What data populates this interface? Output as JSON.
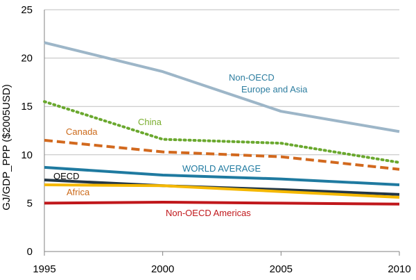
{
  "chart_data": {
    "type": "line",
    "title": "",
    "xlabel": "",
    "ylabel": "GJ/GDP_PPP ($2005USD)",
    "x": [
      1995,
      2000,
      2005,
      2010
    ],
    "xlim": [
      1995,
      2010
    ],
    "ylim": [
      0,
      25
    ],
    "xticks": [
      "1995",
      "2000",
      "2005",
      "2010"
    ],
    "yticks": [
      "0",
      "5",
      "10",
      "15",
      "20",
      "25"
    ],
    "grid": true,
    "series": [
      {
        "name": "Non-OECD Europe and Asia",
        "label_lines": [
          "Non-OECD",
          "Europe and Asia"
        ],
        "values": [
          21.6,
          18.6,
          14.5,
          12.4
        ],
        "color": "#9db6c8",
        "label_color": "#2e7ea0",
        "style": "solid"
      },
      {
        "name": "China",
        "label_lines": [
          "China"
        ],
        "values": [
          15.5,
          11.6,
          11.2,
          9.2
        ],
        "color": "#6aa82e",
        "label_color": "#7aae2e",
        "style": "dotted"
      },
      {
        "name": "Canada",
        "label_lines": [
          "Canada"
        ],
        "values": [
          11.5,
          10.3,
          9.8,
          8.5
        ],
        "color": "#d2691e",
        "label_color": "#cc6a1a",
        "style": "dashed"
      },
      {
        "name": "WORLD AVERAGE",
        "label_lines": [
          "WORLD AVERAGE"
        ],
        "values": [
          8.7,
          7.9,
          7.5,
          6.9
        ],
        "color": "#1f7aa0",
        "label_color": "#1f7aa0",
        "style": "solid"
      },
      {
        "name": "OECD",
        "label_lines": [
          "OECD"
        ],
        "values": [
          7.4,
          6.8,
          6.4,
          5.9
        ],
        "color": "#233746",
        "label_color": "#000000",
        "style": "solid"
      },
      {
        "name": "Africa",
        "label_lines": [
          "Africa"
        ],
        "values": [
          6.9,
          6.8,
          6.2,
          5.6
        ],
        "color": "#f5b800",
        "label_color": "#cc6a1a",
        "style": "solid"
      },
      {
        "name": "Non-OECD Americas",
        "label_lines": [
          "Non-OECD Americas"
        ],
        "values": [
          5.0,
          5.1,
          5.0,
          4.9
        ],
        "color": "#c0171b",
        "label_color": "#c0171b",
        "style": "solid"
      }
    ]
  }
}
